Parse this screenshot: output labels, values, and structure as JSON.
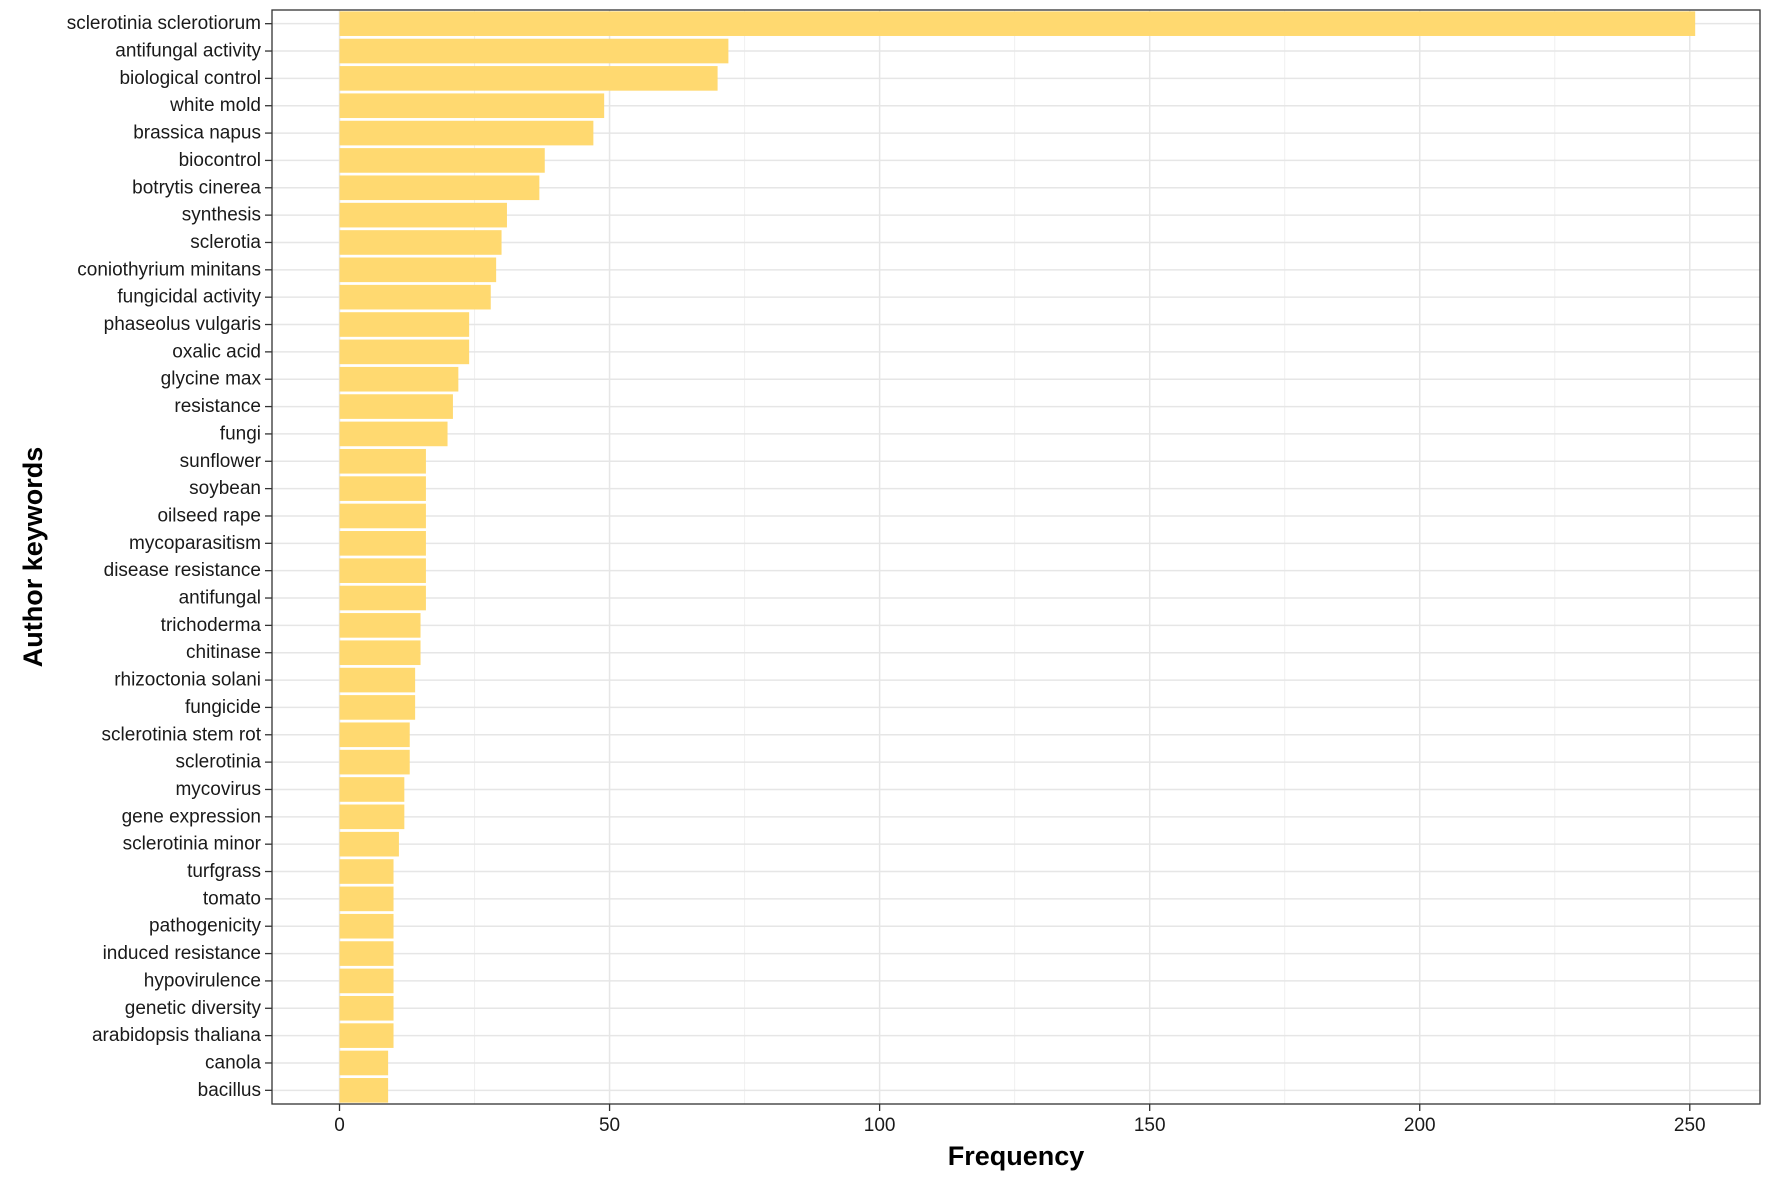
{
  "chart_data": {
    "type": "bar",
    "orientation": "horizontal",
    "xlabel": "Frequency",
    "ylabel": "Author keywords",
    "xlim": [
      -12.5,
      263
    ],
    "xticks": [
      0,
      50,
      100,
      150,
      200,
      250
    ],
    "grid": true,
    "bar_color": "#FFD970",
    "categories": [
      "sclerotinia sclerotiorum",
      "antifungal activity",
      "biological control",
      "white mold",
      "brassica napus",
      "biocontrol",
      "botrytis cinerea",
      "synthesis",
      "sclerotia",
      "coniothyrium minitans",
      "fungicidal activity",
      "phaseolus vulgaris",
      "oxalic acid",
      "glycine max",
      "resistance",
      "fungi",
      "sunflower",
      "soybean",
      "oilseed rape",
      "mycoparasitism",
      "disease resistance",
      "antifungal",
      "trichoderma",
      "chitinase",
      "rhizoctonia solani",
      "fungicide",
      "sclerotinia stem rot",
      "sclerotinia",
      "mycovirus",
      "gene expression",
      "sclerotinia minor",
      "turfgrass",
      "tomato",
      "pathogenicity",
      "induced resistance",
      "hypovirulence",
      "genetic diversity",
      "arabidopsis thaliana",
      "canola",
      "bacillus"
    ],
    "values": [
      251,
      72,
      70,
      49,
      47,
      38,
      37,
      31,
      30,
      29,
      28,
      24,
      24,
      22,
      21,
      20,
      16,
      16,
      16,
      16,
      16,
      16,
      15,
      15,
      14,
      14,
      13,
      13,
      12,
      12,
      11,
      10,
      10,
      10,
      10,
      10,
      10,
      10,
      9,
      9
    ]
  }
}
